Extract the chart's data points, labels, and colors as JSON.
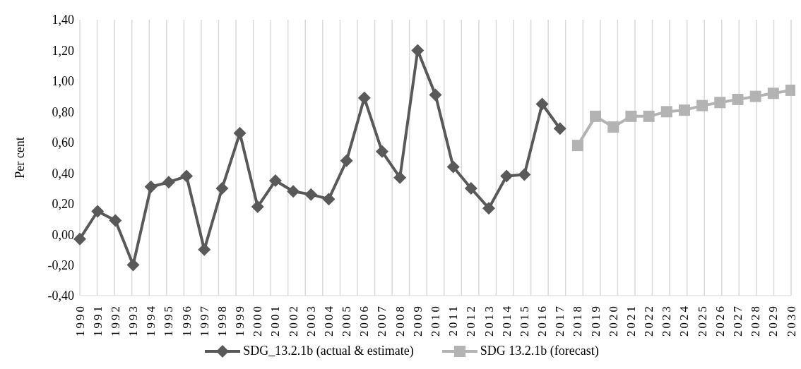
{
  "chart_data": {
    "type": "line",
    "ylabel": "Per cent",
    "categories": [
      "1990",
      "1991",
      "1992",
      "1993",
      "1994",
      "1995",
      "1996",
      "1997",
      "1998",
      "1999",
      "2000",
      "2001",
      "2002",
      "2003",
      "2004",
      "2005",
      "2006",
      "2007",
      "2008",
      "2009",
      "2010",
      "2011",
      "2012",
      "2013",
      "2014",
      "2015",
      "2016",
      "2017",
      "2018",
      "2019",
      "2020",
      "2021",
      "2022",
      "2023",
      "2024",
      "2025",
      "2026",
      "2027",
      "2028",
      "2029",
      "2030"
    ],
    "series": [
      {
        "name": "SDG_13.2.1b (actual & estimate)",
        "color": "#595959",
        "marker": "diamond",
        "values": [
          -0.03,
          0.15,
          0.09,
          -0.2,
          0.31,
          0.34,
          0.38,
          -0.1,
          0.3,
          0.66,
          0.18,
          0.35,
          0.28,
          0.26,
          0.23,
          0.48,
          0.89,
          0.54,
          0.37,
          1.2,
          0.91,
          0.44,
          0.3,
          0.17,
          0.38,
          0.39,
          0.85,
          0.69,
          null,
          null,
          null,
          null,
          null,
          null,
          null,
          null,
          null,
          null,
          null,
          null,
          null
        ]
      },
      {
        "name": "SDG 13.2.1b (forecast)",
        "color": "#b3b3b3",
        "marker": "square",
        "values": [
          null,
          null,
          null,
          null,
          null,
          null,
          null,
          null,
          null,
          null,
          null,
          null,
          null,
          null,
          null,
          null,
          null,
          null,
          null,
          null,
          null,
          null,
          null,
          null,
          null,
          null,
          null,
          null,
          0.58,
          0.77,
          0.7,
          0.77,
          0.77,
          0.8,
          0.81,
          0.84,
          0.86,
          0.88,
          0.9,
          0.92,
          0.94
        ]
      }
    ],
    "ylim": [
      -0.4,
      1.4
    ],
    "yticks": [
      {
        "value": -0.4,
        "label": "-0,40"
      },
      {
        "value": -0.2,
        "label": "-0,20"
      },
      {
        "value": 0,
        "label": "0,00"
      },
      {
        "value": 0.2,
        "label": "0,20"
      },
      {
        "value": 0.4,
        "label": "0,40"
      },
      {
        "value": 0.6,
        "label": "0,60"
      },
      {
        "value": 0.8,
        "label": "0,80"
      },
      {
        "value": 1.0,
        "label": "1,00"
      },
      {
        "value": 1.2,
        "label": "1,20"
      },
      {
        "value": 1.4,
        "label": "1,40"
      }
    ],
    "grid": "x",
    "legend": "bottom",
    "line_style": "solid"
  }
}
